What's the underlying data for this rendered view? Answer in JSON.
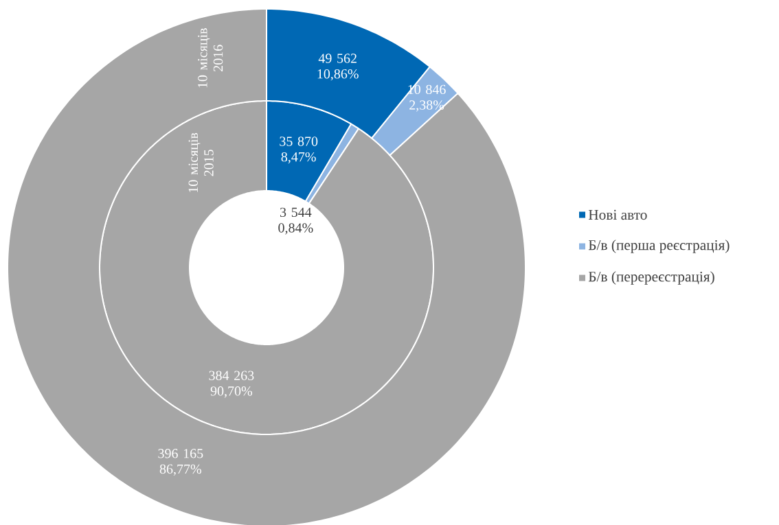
{
  "chart_data": {
    "type": "donut",
    "categories": [
      "Нові авто",
      "Б/в (перша реєстрація)",
      "Б/в (перереєстрація)"
    ],
    "colors": [
      "#0068b4",
      "#8db4e2",
      "#a6a6a6"
    ],
    "legend": "right",
    "series": [
      {
        "name": "10 місяців 2015",
        "values": [
          35870,
          3544,
          384263
        ],
        "value_labels": [
          "35 870 8,47%",
          "3 544 0,84%",
          "384 263 90,70%"
        ]
      },
      {
        "name": "10 місяців 2016",
        "values": [
          49562,
          10846,
          396165
        ],
        "value_labels": [
          "49 562 10,86%",
          "10 846 2,38%",
          "396 165 86,77%"
        ]
      }
    ]
  }
}
